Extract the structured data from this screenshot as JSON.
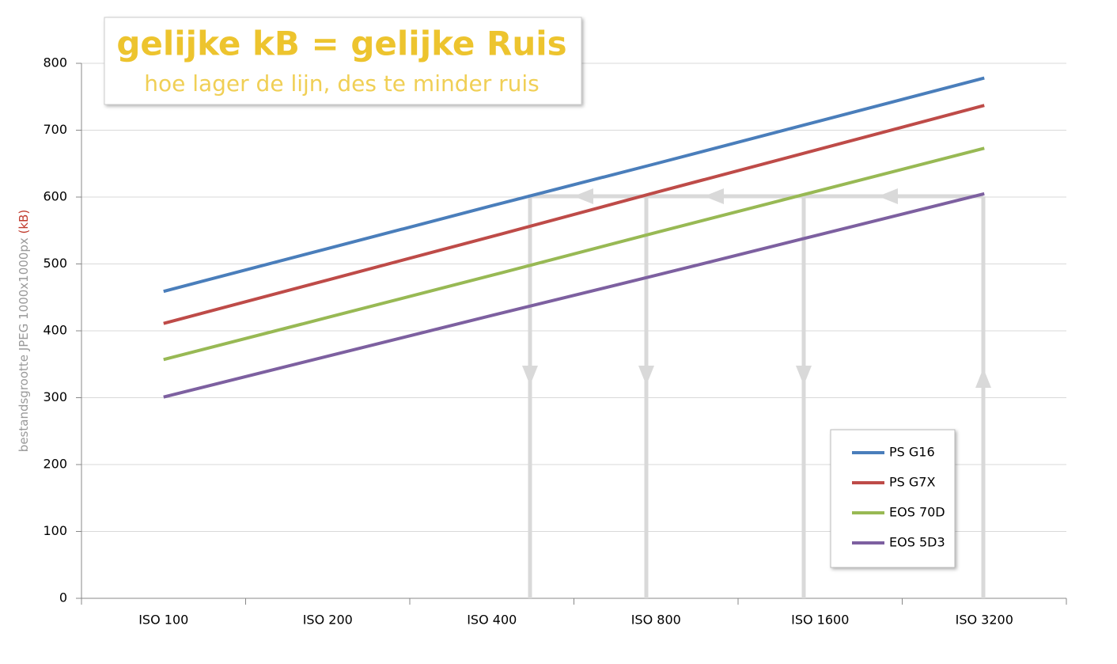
{
  "chart_data": {
    "type": "line",
    "title": "gelijke kB = gelijke Ruis",
    "subtitle": "hoe lager de lijn, des te minder ruis",
    "y_label": "bestandsgrootte JPEG 1000x1000px",
    "y_label_unit": "(kB)",
    "categories": [
      "ISO 100",
      "ISO 200",
      "ISO 400",
      "ISO 800",
      "ISO 1600",
      "ISO 3200"
    ],
    "series": [
      {
        "name": "PS G16",
        "color": "#4a7ebb",
        "values": [
          459,
          523,
          587,
          650,
          714,
          778
        ]
      },
      {
        "name": "PS G7X",
        "color": "#be4b48",
        "values": [
          411,
          476,
          541,
          607,
          672,
          737
        ]
      },
      {
        "name": "EOS 70D",
        "color": "#98b954",
        "values": [
          357,
          420,
          483,
          547,
          610,
          673
        ]
      },
      {
        "name": "EOS 5D3",
        "color": "#7d60a0",
        "values": [
          301,
          362,
          423,
          483,
          544,
          605
        ]
      }
    ],
    "ylim": [
      0,
      800
    ],
    "yticks": [
      0,
      100,
      200,
      300,
      400,
      500,
      600,
      700,
      800
    ],
    "grid": true,
    "legend": "lower right"
  }
}
